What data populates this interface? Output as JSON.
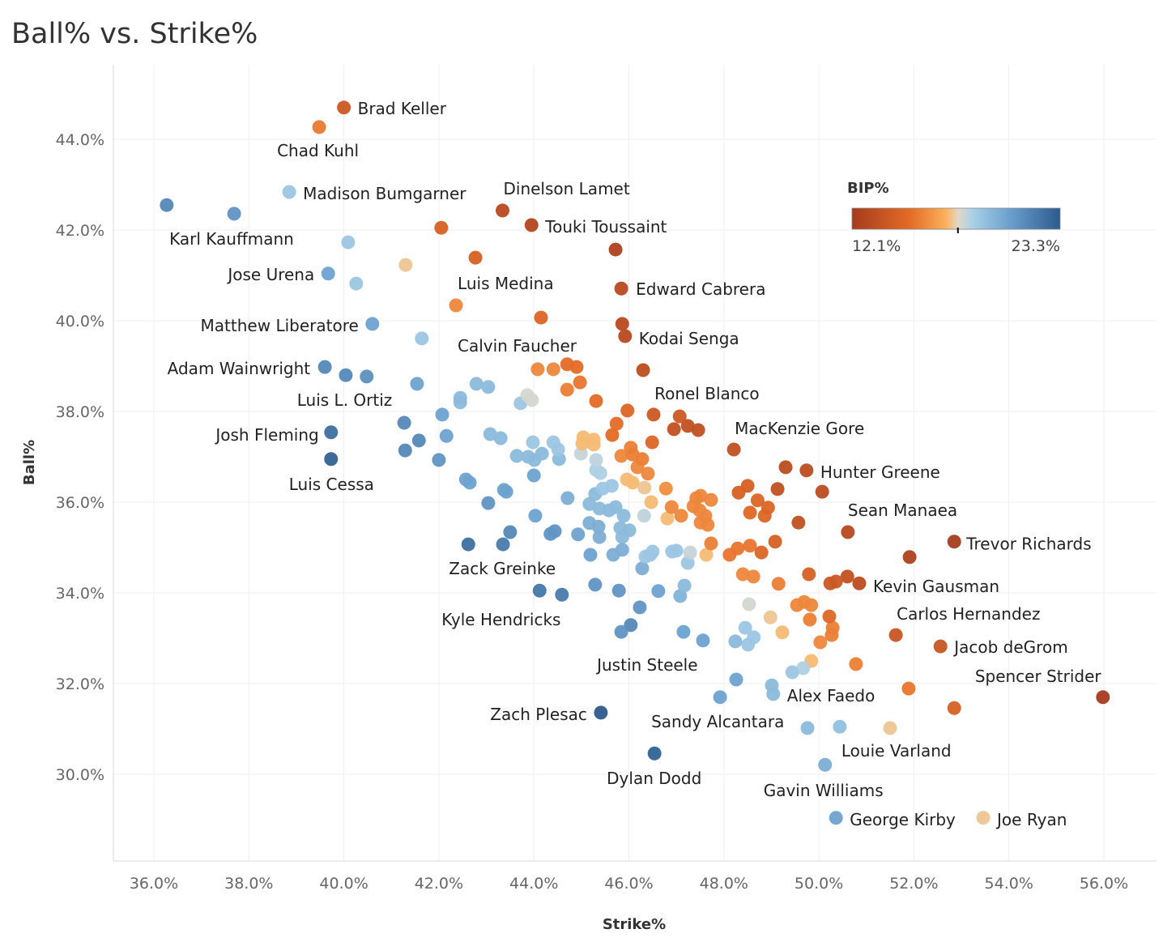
{
  "chart_data": {
    "type": "scatter",
    "title": "Ball% vs. Strike%",
    "xlabel": "Strike%",
    "ylabel": "Ball%",
    "xlim": [
      35.2,
      57.1
    ],
    "ylim": [
      28.1,
      45.6
    ],
    "x_ticks": [
      36,
      38,
      40,
      42,
      44,
      46,
      48,
      50,
      52,
      54,
      56
    ],
    "x_tick_labels": [
      "36.0%",
      "38.0%",
      "40.0%",
      "42.0%",
      "44.0%",
      "46.0%",
      "48.0%",
      "50.0%",
      "52.0%",
      "54.0%",
      "56.0%"
    ],
    "y_ticks": [
      30,
      32,
      34,
      36,
      38,
      40,
      42,
      44
    ],
    "y_tick_labels": [
      "30.0%",
      "32.0%",
      "34.0%",
      "36.0%",
      "38.0%",
      "40.0%",
      "42.0%",
      "44.0%"
    ],
    "grid": true,
    "color_legend": {
      "title": "BIP%",
      "min": 12.1,
      "max": 23.3,
      "min_label": "12.1%",
      "max_label": "23.3%",
      "midpoint": 17.8,
      "placement": "top-right",
      "stops": [
        [
          0,
          "#a53b1d"
        ],
        [
          0.28,
          "#e46c26"
        ],
        [
          0.45,
          "#fbb05a"
        ],
        [
          0.51,
          "#e2d8c8"
        ],
        [
          0.58,
          "#a8d0e8"
        ],
        [
          0.76,
          "#6a9fcd"
        ],
        [
          1,
          "#2b5b8d"
        ]
      ]
    },
    "points_columns": [
      "strike_pct",
      "ball_pct",
      "bip_pct",
      "label"
    ],
    "points": [
      [
        40.0,
        44.7,
        14.0,
        "Brad Keller"
      ],
      [
        39.48,
        44.27,
        15.6,
        "Chad Kuhl"
      ],
      [
        38.85,
        42.84,
        19.0,
        "Madison Bumgarner"
      ],
      [
        37.69,
        42.36,
        21.0,
        "Karl Kauffmann"
      ],
      [
        43.34,
        42.43,
        13.0,
        "Dinelson Lamet"
      ],
      [
        43.95,
        42.11,
        12.8,
        "Touki Toussaint"
      ],
      [
        39.67,
        41.04,
        20.5,
        "Jose Urena"
      ],
      [
        42.77,
        41.39,
        14.5,
        "Luis Medina"
      ],
      [
        45.84,
        40.71,
        13.0,
        "Edward Cabrera"
      ],
      [
        40.6,
        39.93,
        20.5,
        "Matthew Liberatore"
      ],
      [
        45.92,
        39.66,
        13.0,
        "Kodai Senga"
      ],
      [
        44.15,
        40.07,
        14.8,
        "Calvin Faucher"
      ],
      [
        39.6,
        38.98,
        21.5,
        "Adam Wainwright"
      ],
      [
        40.48,
        38.77,
        21.2,
        "Luis L. Ortiz"
      ],
      [
        46.3,
        38.91,
        13.3,
        "Ronel Blanco"
      ],
      [
        39.73,
        37.54,
        22.5,
        "Josh Fleming"
      ],
      [
        48.21,
        37.16,
        13.5,
        "MacKenzie Gore"
      ],
      [
        39.73,
        36.95,
        23.0,
        "Luis Cessa"
      ],
      [
        49.74,
        36.7,
        13.2,
        "Hunter Greene"
      ],
      [
        50.61,
        35.34,
        13.0,
        "Sean Manaea"
      ],
      [
        52.85,
        35.13,
        12.2,
        "Trevor Richards"
      ],
      [
        42.62,
        35.07,
        22.5,
        "Zack Greinke"
      ],
      [
        50.85,
        34.21,
        13.2,
        "Kevin Gausman"
      ],
      [
        44.12,
        34.05,
        22.2,
        "Kyle Hendricks"
      ],
      [
        51.62,
        33.07,
        13.8,
        "Carlos Hernandez"
      ],
      [
        52.56,
        32.82,
        13.8,
        "Jacob deGrom"
      ],
      [
        45.84,
        33.14,
        21.0,
        "Justin Steele"
      ],
      [
        55.98,
        31.7,
        12.1,
        "Spencer Strider"
      ],
      [
        49.04,
        31.77,
        19.5,
        "Alex Faedo"
      ],
      [
        45.41,
        31.36,
        23.3,
        "Zach Plesac"
      ],
      [
        47.92,
        31.7,
        20.5,
        "Sandy Alcantara"
      ],
      [
        50.44,
        31.05,
        19.3,
        "Louie Varland"
      ],
      [
        46.54,
        30.46,
        23.0,
        "Dylan Dodd"
      ],
      [
        50.13,
        30.21,
        20.0,
        "Gavin Williams"
      ],
      [
        50.36,
        29.04,
        20.5,
        "George Kirby"
      ],
      [
        53.46,
        29.04,
        17.5,
        "Joe Ryan"
      ],
      [
        45.86,
        39.93,
        13.0,
        ""
      ],
      [
        36.27,
        42.55,
        21.5,
        ""
      ],
      [
        42.05,
        42.05,
        14.5,
        ""
      ],
      [
        40.09,
        41.73,
        19.0,
        ""
      ],
      [
        41.3,
        41.23,
        17.5,
        ""
      ],
      [
        40.26,
        40.82,
        19.0,
        ""
      ],
      [
        45.72,
        41.57,
        12.5,
        ""
      ],
      [
        42.36,
        40.34,
        16.0,
        ""
      ],
      [
        41.64,
        39.61,
        19.0,
        ""
      ],
      [
        41.54,
        38.61,
        20.5,
        ""
      ],
      [
        40.04,
        38.8,
        21.5,
        ""
      ],
      [
        42.79,
        38.61,
        19.5,
        ""
      ],
      [
        43.04,
        38.54,
        19.5,
        ""
      ],
      [
        42.45,
        38.3,
        19.5,
        ""
      ],
      [
        42.45,
        38.2,
        19.5,
        ""
      ],
      [
        42.07,
        37.93,
        20.5,
        ""
      ],
      [
        41.27,
        37.75,
        21.5,
        ""
      ],
      [
        41.58,
        37.36,
        21.5,
        ""
      ],
      [
        41.29,
        37.14,
        21.5,
        ""
      ],
      [
        42.16,
        37.46,
        20.5,
        ""
      ],
      [
        42.0,
        36.93,
        21.0,
        ""
      ],
      [
        42.57,
        36.5,
        20.5,
        ""
      ],
      [
        42.65,
        36.43,
        20.5,
        ""
      ],
      [
        43.04,
        35.98,
        21.0,
        ""
      ],
      [
        43.37,
        36.27,
        20.5,
        ""
      ],
      [
        43.42,
        36.23,
        20.5,
        ""
      ],
      [
        43.08,
        37.5,
        19.5,
        ""
      ],
      [
        43.3,
        37.41,
        19.5,
        ""
      ],
      [
        43.98,
        37.32,
        19.0,
        ""
      ],
      [
        44.41,
        37.32,
        19.0,
        ""
      ],
      [
        44.51,
        37.16,
        19.0,
        ""
      ],
      [
        43.64,
        37.02,
        19.5,
        ""
      ],
      [
        43.88,
        37.0,
        19.5,
        ""
      ],
      [
        44.01,
        36.93,
        19.5,
        ""
      ],
      [
        44.17,
        37.07,
        19.5,
        ""
      ],
      [
        44.53,
        36.95,
        19.5,
        ""
      ],
      [
        44.0,
        36.59,
        20.5,
        ""
      ],
      [
        44.71,
        36.09,
        20.0,
        ""
      ],
      [
        44.03,
        35.7,
        20.5,
        ""
      ],
      [
        43.5,
        35.34,
        21.5,
        ""
      ],
      [
        43.35,
        35.07,
        22.0,
        ""
      ],
      [
        44.44,
        35.36,
        21.0,
        ""
      ],
      [
        44.35,
        35.3,
        21.0,
        ""
      ],
      [
        44.93,
        35.29,
        20.5,
        ""
      ],
      [
        45.17,
        35.54,
        20.0,
        ""
      ],
      [
        45.36,
        35.46,
        20.0,
        ""
      ],
      [
        45.38,
        35.23,
        20.0,
        ""
      ],
      [
        45.19,
        34.84,
        20.5,
        ""
      ],
      [
        45.67,
        34.84,
        20.0,
        ""
      ],
      [
        45.86,
        34.95,
        20.0,
        ""
      ],
      [
        45.29,
        34.18,
        21.0,
        ""
      ],
      [
        44.59,
        33.96,
        22.0,
        ""
      ],
      [
        45.79,
        34.05,
        21.0,
        ""
      ],
      [
        46.23,
        33.68,
        21.0,
        ""
      ],
      [
        46.04,
        33.29,
        21.5,
        ""
      ],
      [
        46.62,
        34.04,
        20.5,
        ""
      ],
      [
        47.17,
        34.16,
        19.5,
        ""
      ],
      [
        47.08,
        33.93,
        19.8,
        ""
      ],
      [
        47.15,
        33.14,
        20.5,
        ""
      ],
      [
        47.56,
        32.95,
        20.5,
        ""
      ],
      [
        48.26,
        32.09,
        20.5,
        ""
      ],
      [
        48.24,
        32.93,
        19.5,
        ""
      ],
      [
        48.45,
        33.23,
        19.0,
        ""
      ],
      [
        48.51,
        32.86,
        19.0,
        ""
      ],
      [
        48.63,
        33.02,
        19.0,
        ""
      ],
      [
        49.44,
        32.25,
        19.0,
        ""
      ],
      [
        49.67,
        32.34,
        18.5,
        ""
      ],
      [
        49.01,
        31.96,
        19.5,
        ""
      ],
      [
        49.76,
        31.02,
        19.5,
        ""
      ],
      [
        51.5,
        31.02,
        17.5,
        ""
      ],
      [
        44.08,
        38.93,
        16.0,
        ""
      ],
      [
        44.41,
        38.93,
        16.0,
        ""
      ],
      [
        44.7,
        39.04,
        15.2,
        ""
      ],
      [
        44.9,
        38.98,
        15.2,
        ""
      ],
      [
        44.97,
        38.64,
        15.5,
        ""
      ],
      [
        44.7,
        38.48,
        15.8,
        ""
      ],
      [
        45.31,
        38.23,
        15.2,
        ""
      ],
      [
        43.86,
        38.36,
        18.0,
        ""
      ],
      [
        43.96,
        38.25,
        18.0,
        ""
      ],
      [
        43.72,
        38.18,
        19.0,
        ""
      ],
      [
        45.97,
        38.02,
        14.8,
        ""
      ],
      [
        46.52,
        37.93,
        14.0,
        ""
      ],
      [
        47.07,
        37.89,
        14.0,
        ""
      ],
      [
        46.95,
        37.61,
        13.5,
        ""
      ],
      [
        47.24,
        37.68,
        13.5,
        ""
      ],
      [
        47.46,
        37.59,
        13.5,
        ""
      ],
      [
        45.74,
        37.73,
        15.2,
        ""
      ],
      [
        45.65,
        37.48,
        15.2,
        ""
      ],
      [
        45.04,
        37.43,
        17.3,
        ""
      ],
      [
        45.26,
        37.38,
        17.3,
        ""
      ],
      [
        45.26,
        37.27,
        17.3,
        ""
      ],
      [
        45.02,
        37.29,
        17.3,
        ""
      ],
      [
        44.99,
        37.07,
        18.2,
        ""
      ],
      [
        45.31,
        36.93,
        18.3,
        ""
      ],
      [
        45.31,
        36.71,
        18.5,
        ""
      ],
      [
        45.4,
        36.64,
        18.5,
        ""
      ],
      [
        46.49,
        37.32,
        14.8,
        ""
      ],
      [
        46.04,
        37.2,
        15.8,
        ""
      ],
      [
        46.08,
        37.05,
        15.8,
        ""
      ],
      [
        46.28,
        36.95,
        15.8,
        ""
      ],
      [
        45.84,
        37.02,
        16.0,
        ""
      ],
      [
        46.18,
        36.77,
        16.0,
        ""
      ],
      [
        46.4,
        36.63,
        16.0,
        ""
      ],
      [
        45.96,
        36.5,
        17.3,
        ""
      ],
      [
        46.08,
        36.43,
        17.3,
        ""
      ],
      [
        46.33,
        36.32,
        17.5,
        ""
      ],
      [
        46.78,
        36.3,
        16.2,
        ""
      ],
      [
        46.47,
        36.0,
        17.3,
        ""
      ],
      [
        46.9,
        35.89,
        16.0,
        ""
      ],
      [
        47.1,
        35.7,
        16.0,
        ""
      ],
      [
        46.81,
        35.64,
        17.3,
        ""
      ],
      [
        46.32,
        35.7,
        18.3,
        ""
      ],
      [
        45.45,
        36.3,
        19.0,
        ""
      ],
      [
        45.64,
        36.36,
        19.0,
        ""
      ],
      [
        45.29,
        36.18,
        19.5,
        ""
      ],
      [
        45.17,
        35.96,
        19.5,
        ""
      ],
      [
        45.38,
        35.86,
        19.5,
        ""
      ],
      [
        45.58,
        35.82,
        19.5,
        ""
      ],
      [
        45.72,
        35.89,
        19.5,
        ""
      ],
      [
        45.89,
        35.7,
        19.5,
        ""
      ],
      [
        45.82,
        35.43,
        19.5,
        ""
      ],
      [
        46.01,
        35.38,
        19.5,
        ""
      ],
      [
        45.86,
        35.23,
        19.5,
        ""
      ],
      [
        46.45,
        34.84,
        19.0,
        ""
      ],
      [
        46.35,
        34.8,
        19.0,
        ""
      ],
      [
        46.5,
        34.91,
        19.0,
        ""
      ],
      [
        46.91,
        34.91,
        19.0,
        ""
      ],
      [
        47.0,
        34.93,
        19.0,
        ""
      ],
      [
        47.29,
        34.89,
        18.2,
        ""
      ],
      [
        47.24,
        34.66,
        19.0,
        ""
      ],
      [
        46.28,
        34.54,
        20.0,
        ""
      ],
      [
        47.42,
        36.09,
        16.0,
        ""
      ],
      [
        47.49,
        35.82,
        16.0,
        ""
      ],
      [
        47.73,
        36.05,
        16.0,
        ""
      ],
      [
        47.51,
        36.14,
        16.0,
        ""
      ],
      [
        47.36,
        35.91,
        16.0,
        ""
      ],
      [
        47.61,
        35.7,
        16.0,
        ""
      ],
      [
        47.66,
        35.5,
        16.0,
        ""
      ],
      [
        47.51,
        35.55,
        16.0,
        ""
      ],
      [
        48.31,
        36.21,
        14.5,
        ""
      ],
      [
        48.5,
        36.36,
        14.5,
        ""
      ],
      [
        48.71,
        36.04,
        14.8,
        ""
      ],
      [
        48.93,
        35.88,
        14.8,
        ""
      ],
      [
        48.86,
        35.7,
        14.8,
        ""
      ],
      [
        48.55,
        35.77,
        15.0,
        ""
      ],
      [
        49.13,
        36.29,
        13.5,
        ""
      ],
      [
        49.3,
        36.77,
        13.2,
        ""
      ],
      [
        50.07,
        36.23,
        13.2,
        ""
      ],
      [
        49.57,
        35.55,
        13.5,
        ""
      ],
      [
        49.08,
        35.13,
        14.5,
        ""
      ],
      [
        48.79,
        34.89,
        14.8,
        ""
      ],
      [
        48.55,
        35.04,
        15.5,
        ""
      ],
      [
        48.29,
        34.98,
        15.5,
        ""
      ],
      [
        48.12,
        34.84,
        15.5,
        ""
      ],
      [
        47.73,
        35.09,
        15.8,
        ""
      ],
      [
        47.63,
        34.84,
        17.3,
        ""
      ],
      [
        48.4,
        34.41,
        16.0,
        ""
      ],
      [
        48.62,
        34.36,
        16.0,
        ""
      ],
      [
        49.15,
        34.2,
        15.8,
        ""
      ],
      [
        49.79,
        34.41,
        14.5,
        ""
      ],
      [
        50.24,
        34.21,
        14.0,
        ""
      ],
      [
        50.36,
        34.25,
        14.0,
        ""
      ],
      [
        50.6,
        34.36,
        13.5,
        ""
      ],
      [
        51.91,
        34.79,
        12.5,
        ""
      ],
      [
        48.53,
        33.75,
        18.0,
        ""
      ],
      [
        48.98,
        33.46,
        17.5,
        ""
      ],
      [
        49.23,
        33.13,
        17.3,
        ""
      ],
      [
        49.54,
        33.73,
        16.0,
        ""
      ],
      [
        49.69,
        33.8,
        16.0,
        ""
      ],
      [
        49.84,
        33.73,
        16.0,
        ""
      ],
      [
        49.81,
        33.41,
        15.8,
        ""
      ],
      [
        50.22,
        33.48,
        15.0,
        ""
      ],
      [
        50.29,
        33.23,
        15.8,
        ""
      ],
      [
        50.27,
        33.07,
        15.8,
        ""
      ],
      [
        50.03,
        32.91,
        16.0,
        ""
      ],
      [
        49.84,
        32.5,
        17.3,
        ""
      ],
      [
        50.78,
        32.43,
        15.8,
        ""
      ],
      [
        51.89,
        31.89,
        15.5,
        ""
      ],
      [
        52.85,
        31.46,
        14.5,
        ""
      ]
    ]
  }
}
